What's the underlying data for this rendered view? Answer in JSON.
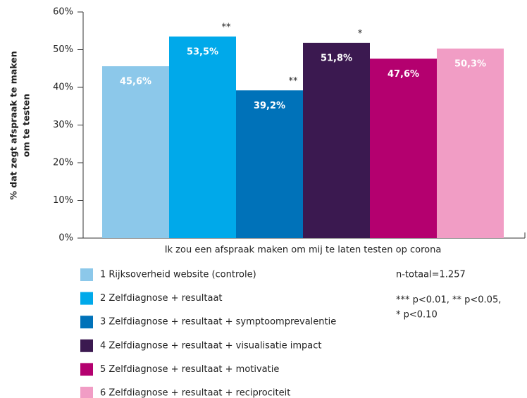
{
  "chart_data": {
    "type": "bar",
    "ylabel": [
      "% dat zegt afspraak te maken",
      "om te testen"
    ],
    "categories": [
      "Ik zou een afspraak maken om mij te laten testen op corona"
    ],
    "ylim": [
      0,
      60
    ],
    "yticks": [
      {
        "value": 0,
        "label": "0%"
      },
      {
        "value": 10,
        "label": "10%"
      },
      {
        "value": 20,
        "label": "20%"
      },
      {
        "value": 30,
        "label": "30%"
      },
      {
        "value": 40,
        "label": "40%"
      },
      {
        "value": 50,
        "label": "50%"
      },
      {
        "value": 60,
        "label": "60%"
      }
    ],
    "series": [
      {
        "name": "1 Rijksoverheid website (controle)",
        "color": "#8cc8ea",
        "values": [
          45.6
        ],
        "value_labels": [
          "45,6%"
        ]
      },
      {
        "name": "2 Zelfdiagnose + resultaat",
        "color": "#00a9ea",
        "values": [
          53.5
        ],
        "value_labels": [
          "53,5%"
        ],
        "significance": "**"
      },
      {
        "name": "3 Zelfdiagnose + resultaat + symptoomprevalentie",
        "color": "#0072b9",
        "values": [
          39.2
        ],
        "value_labels": [
          "39,2%"
        ],
        "significance": "**"
      },
      {
        "name": "4 Zelfdiagnose + resultaat + visualisatie impact",
        "color": "#3b1950",
        "values": [
          51.8
        ],
        "value_labels": [
          "51,8%"
        ],
        "significance": "*"
      },
      {
        "name": "5 Zelfdiagnose + resultaat + motivatie",
        "color": "#b4006f",
        "values": [
          47.6
        ],
        "value_labels": [
          "47,6%"
        ]
      },
      {
        "name": "6 Zelfdiagnose + resultaat + reciprociteit",
        "color": "#f19dc5",
        "values": [
          50.3
        ],
        "value_labels": [
          "50,3%"
        ]
      }
    ],
    "notes": [
      "n-totaal=1.257",
      "*** p<0.01, ** p<0.05,",
      "* p<0.10"
    ]
  }
}
